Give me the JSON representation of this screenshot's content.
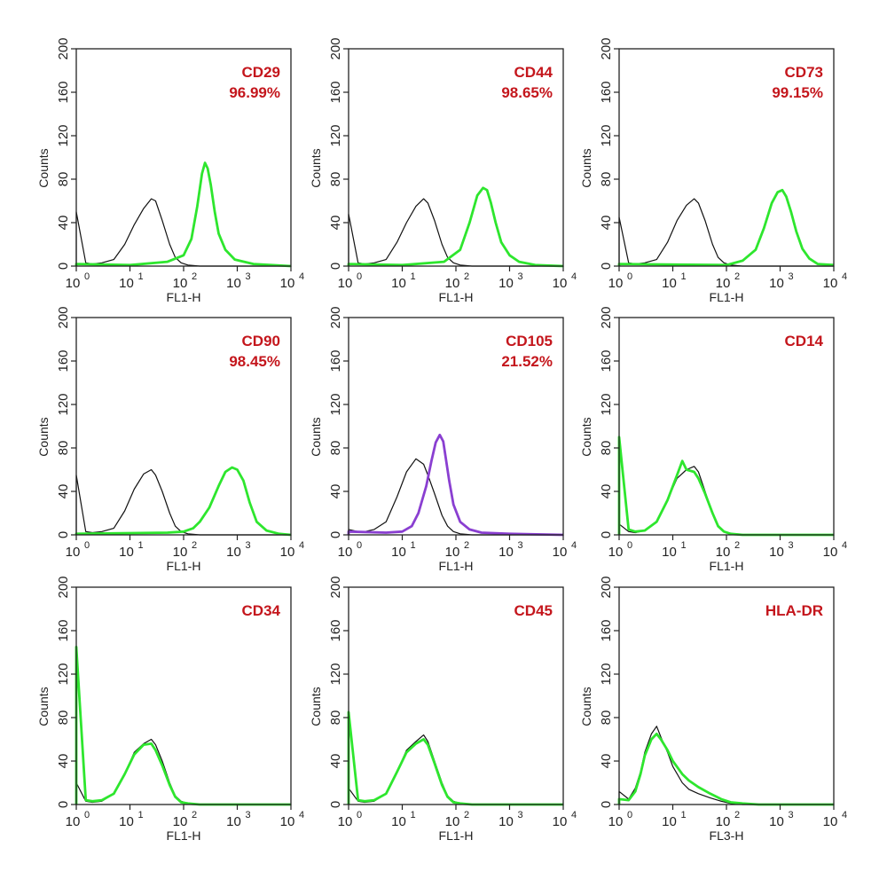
{
  "colors": {
    "isotype": "#111111",
    "stain_green": "#2ee62e",
    "stain_purple": "#8a3fd1",
    "label": "#c4161c"
  },
  "chart_data": [
    {
      "type": "line",
      "marker": "CD29",
      "percent": "96.99%",
      "xlabel": "FL1-H",
      "ylabel": "Counts",
      "xscale": "log",
      "xlim": [
        1,
        10000
      ],
      "ylim": [
        0,
        200
      ],
      "yticks": [
        "0",
        "40",
        "80",
        "120",
        "160",
        "200"
      ],
      "xticks": [
        "10",
        "10",
        "10",
        "10",
        "10"
      ],
      "xtick_exps": [
        "0",
        "1",
        "2",
        "3",
        "4"
      ],
      "series": [
        {
          "color": "#111111",
          "x": [
            1,
            1.5,
            2,
            3,
            5,
            8,
            12,
            18,
            25,
            30,
            40,
            55,
            70,
            90,
            120,
            200,
            400,
            1000,
            10000
          ],
          "y": [
            50,
            3,
            2,
            3,
            6,
            20,
            38,
            53,
            62,
            60,
            42,
            20,
            8,
            3,
            1,
            0,
            0,
            0,
            0
          ]
        },
        {
          "color": "#2ee62e",
          "x": [
            1,
            10,
            50,
            100,
            140,
            180,
            220,
            250,
            280,
            320,
            380,
            450,
            600,
            900,
            2000,
            10000
          ],
          "y": [
            2,
            1,
            4,
            10,
            25,
            55,
            85,
            95,
            90,
            75,
            50,
            30,
            15,
            6,
            2,
            0
          ]
        }
      ]
    },
    {
      "type": "line",
      "marker": "CD44",
      "percent": "98.65%",
      "xlabel": "FL1-H",
      "ylabel": "Counts",
      "xscale": "log",
      "xlim": [
        1,
        10000
      ],
      "ylim": [
        0,
        200
      ],
      "yticks": [
        "0",
        "40",
        "80",
        "120",
        "160",
        "200"
      ],
      "xticks": [
        "10",
        "10",
        "10",
        "10",
        "10"
      ],
      "xtick_exps": [
        "0",
        "1",
        "2",
        "3",
        "4"
      ],
      "series": [
        {
          "color": "#111111",
          "x": [
            1,
            1.5,
            2,
            3,
            5,
            8,
            12,
            18,
            25,
            30,
            40,
            55,
            70,
            90,
            120,
            200,
            400,
            1000,
            10000
          ],
          "y": [
            48,
            3,
            2,
            3,
            6,
            22,
            40,
            55,
            62,
            58,
            42,
            20,
            8,
            3,
            1,
            0,
            0,
            0,
            0
          ]
        },
        {
          "color": "#2ee62e",
          "x": [
            1,
            10,
            60,
            120,
            180,
            250,
            320,
            380,
            450,
            550,
            700,
            1000,
            1500,
            3000,
            10000
          ],
          "y": [
            2,
            1,
            4,
            15,
            40,
            65,
            72,
            70,
            58,
            40,
            22,
            10,
            4,
            1,
            0
          ]
        }
      ]
    },
    {
      "type": "line",
      "marker": "CD73",
      "percent": "99.15%",
      "xlabel": "FL1-H",
      "ylabel": "Counts",
      "xscale": "log",
      "xlim": [
        1,
        10000
      ],
      "ylim": [
        0,
        200
      ],
      "yticks": [
        "0",
        "40",
        "80",
        "120",
        "160",
        "200"
      ],
      "xticks": [
        "10",
        "10",
        "10",
        "10",
        "10"
      ],
      "xtick_exps": [
        "0",
        "1",
        "2",
        "3",
        "4"
      ],
      "series": [
        {
          "color": "#111111",
          "x": [
            1,
            1.5,
            2,
            3,
            5,
            8,
            12,
            18,
            25,
            30,
            40,
            55,
            70,
            90,
            120,
            200,
            400,
            1000,
            10000
          ],
          "y": [
            45,
            3,
            2,
            3,
            6,
            22,
            42,
            56,
            62,
            58,
            42,
            20,
            8,
            3,
            1,
            0,
            0,
            0,
            0
          ]
        },
        {
          "color": "#2ee62e",
          "x": [
            1,
            100,
            200,
            350,
            500,
            700,
            900,
            1100,
            1300,
            1600,
            2000,
            2600,
            3500,
            5000,
            10000
          ],
          "y": [
            2,
            1,
            5,
            15,
            35,
            58,
            68,
            70,
            64,
            50,
            32,
            16,
            7,
            2,
            1
          ]
        }
      ]
    },
    {
      "type": "line",
      "marker": "CD90",
      "percent": "98.45%",
      "xlabel": "FL1-H",
      "ylabel": "Counts",
      "xscale": "log",
      "xlim": [
        1,
        10000
      ],
      "ylim": [
        0,
        200
      ],
      "yticks": [
        "0",
        "40",
        "80",
        "120",
        "160",
        "200"
      ],
      "xticks": [
        "10",
        "10",
        "10",
        "10",
        "10"
      ],
      "xtick_exps": [
        "0",
        "1",
        "2",
        "3",
        "4"
      ],
      "series": [
        {
          "color": "#111111",
          "x": [
            1,
            1.5,
            2,
            3,
            5,
            8,
            12,
            18,
            25,
            30,
            40,
            55,
            70,
            90,
            120,
            200,
            400,
            1000,
            10000
          ],
          "y": [
            55,
            3,
            2,
            3,
            6,
            22,
            42,
            56,
            60,
            55,
            40,
            20,
            8,
            3,
            1,
            0,
            0,
            0,
            0
          ]
        },
        {
          "color": "#2ee62e",
          "x": [
            1,
            50,
            100,
            150,
            200,
            300,
            450,
            600,
            800,
            1000,
            1300,
            1700,
            2300,
            3500,
            6000,
            10000
          ],
          "y": [
            1,
            2,
            3,
            6,
            12,
            25,
            45,
            58,
            62,
            60,
            50,
            30,
            12,
            4,
            1,
            0
          ]
        }
      ]
    },
    {
      "type": "line",
      "marker": "CD105",
      "percent": "21.52%",
      "xlabel": "FL1-H",
      "ylabel": "Counts",
      "xscale": "log",
      "xlim": [
        1,
        10000
      ],
      "ylim": [
        0,
        200
      ],
      "yticks": [
        "0",
        "40",
        "80",
        "120",
        "160",
        "200"
      ],
      "xticks": [
        "10",
        "10",
        "10",
        "10",
        "10"
      ],
      "xtick_exps": [
        "0",
        "1",
        "2",
        "3",
        "4"
      ],
      "series": [
        {
          "color": "#111111",
          "x": [
            1,
            1.5,
            2,
            3,
            5,
            8,
            12,
            18,
            25,
            30,
            40,
            55,
            70,
            90,
            120,
            200,
            400,
            1000,
            10000
          ],
          "y": [
            5,
            3,
            3,
            5,
            12,
            35,
            58,
            70,
            65,
            55,
            38,
            18,
            8,
            3,
            1,
            0,
            0,
            0,
            0
          ]
        },
        {
          "color": "#8a3fd1",
          "x": [
            1,
            5,
            10,
            15,
            20,
            28,
            35,
            42,
            50,
            58,
            65,
            75,
            90,
            120,
            180,
            300,
            1000,
            10000
          ],
          "y": [
            3,
            2,
            3,
            8,
            20,
            45,
            68,
            85,
            92,
            86,
            70,
            50,
            28,
            12,
            5,
            2,
            1,
            0
          ]
        }
      ]
    },
    {
      "type": "line",
      "marker": "CD14",
      "percent": "",
      "xlabel": "FL1-H",
      "ylabel": "Counts",
      "xscale": "log",
      "xlim": [
        1,
        10000
      ],
      "ylim": [
        0,
        200
      ],
      "yticks": [
        "0",
        "40",
        "80",
        "120",
        "160",
        "200"
      ],
      "xticks": [
        "10",
        "10",
        "10",
        "10",
        "10"
      ],
      "xtick_exps": [
        "0",
        "1",
        "2",
        "3",
        "4"
      ],
      "series": [
        {
          "color": "#111111",
          "x": [
            1,
            1.5,
            2,
            3,
            5,
            8,
            12,
            18,
            25,
            30,
            40,
            55,
            70,
            90,
            120,
            200,
            400,
            1000,
            10000
          ],
          "y": [
            10,
            3,
            2,
            4,
            12,
            32,
            52,
            60,
            63,
            58,
            40,
            20,
            8,
            3,
            1,
            0,
            0,
            0,
            0
          ]
        },
        {
          "color": "#2ee62e",
          "x": [
            1,
            1.5,
            2,
            3,
            5,
            8,
            12,
            15,
            18,
            25,
            30,
            40,
            55,
            70,
            90,
            120,
            200,
            400,
            1000,
            10000
          ],
          "y": [
            90,
            5,
            3,
            4,
            12,
            32,
            55,
            68,
            60,
            58,
            52,
            38,
            20,
            8,
            3,
            1,
            0,
            0,
            0,
            0
          ]
        }
      ]
    },
    {
      "type": "line",
      "marker": "CD34",
      "percent": "",
      "xlabel": "FL1-H",
      "ylabel": "Counts",
      "xscale": "log",
      "xlim": [
        1,
        10000
      ],
      "ylim": [
        0,
        200
      ],
      "yticks": [
        "0",
        "40",
        "80",
        "120",
        "160",
        "200"
      ],
      "xticks": [
        "10",
        "10",
        "10",
        "10",
        "10"
      ],
      "xtick_exps": [
        "0",
        "1",
        "2",
        "3",
        "4"
      ],
      "series": [
        {
          "color": "#111111",
          "x": [
            1,
            1.5,
            2,
            3,
            5,
            8,
            12,
            18,
            25,
            30,
            40,
            55,
            70,
            90,
            120,
            200,
            400,
            1000,
            10000
          ],
          "y": [
            20,
            3,
            2,
            3,
            10,
            28,
            48,
            56,
            60,
            55,
            40,
            20,
            8,
            3,
            1,
            0,
            0,
            0,
            0
          ]
        },
        {
          "color": "#2ee62e",
          "x": [
            1,
            1.5,
            2,
            3,
            5,
            8,
            12,
            18,
            25,
            30,
            40,
            55,
            70,
            90,
            120,
            200,
            400,
            1000,
            10000
          ],
          "y": [
            145,
            4,
            3,
            4,
            10,
            28,
            46,
            55,
            56,
            50,
            36,
            18,
            7,
            2,
            1,
            0,
            0,
            0,
            0
          ]
        }
      ]
    },
    {
      "type": "line",
      "marker": "CD45",
      "percent": "",
      "xlabel": "FL1-H",
      "ylabel": "Counts",
      "xscale": "log",
      "xlim": [
        1,
        10000
      ],
      "ylim": [
        0,
        200
      ],
      "yticks": [
        "0",
        "40",
        "80",
        "120",
        "160",
        "200"
      ],
      "xticks": [
        "10",
        "10",
        "10",
        "10",
        "10"
      ],
      "xtick_exps": [
        "0",
        "1",
        "2",
        "3",
        "4"
      ],
      "series": [
        {
          "color": "#111111",
          "x": [
            1,
            1.5,
            2,
            3,
            5,
            8,
            12,
            18,
            25,
            30,
            40,
            55,
            70,
            90,
            120,
            200,
            400,
            1000,
            10000
          ],
          "y": [
            15,
            3,
            2,
            3,
            10,
            30,
            50,
            58,
            64,
            58,
            40,
            20,
            8,
            3,
            1,
            0,
            0,
            0,
            0
          ]
        },
        {
          "color": "#2ee62e",
          "x": [
            1,
            1.5,
            2,
            3,
            5,
            8,
            12,
            18,
            25,
            30,
            40,
            55,
            70,
            90,
            120,
            200,
            400,
            1000,
            10000
          ],
          "y": [
            85,
            4,
            3,
            4,
            10,
            30,
            48,
            56,
            60,
            55,
            38,
            18,
            7,
            2,
            1,
            0,
            0,
            0,
            0
          ]
        }
      ]
    },
    {
      "type": "line",
      "marker": "HLA-DR",
      "percent": "",
      "xlabel": "FL3-H",
      "ylabel": "Counts",
      "xscale": "log",
      "xlim": [
        1,
        10000
      ],
      "ylim": [
        0,
        200
      ],
      "yticks": [
        "0",
        "40",
        "80",
        "120",
        "160",
        "200"
      ],
      "xticks": [
        "10",
        "10",
        "10",
        "10",
        "10"
      ],
      "xtick_exps": [
        "0",
        "1",
        "2",
        "3",
        "4"
      ],
      "series": [
        {
          "color": "#111111",
          "x": [
            1,
            1.5,
            2,
            2.5,
            3,
            4,
            5,
            6,
            8,
            10,
            15,
            20,
            30,
            50,
            80,
            120,
            200,
            400,
            1000,
            10000
          ],
          "y": [
            12,
            5,
            15,
            30,
            48,
            65,
            72,
            62,
            48,
            35,
            20,
            14,
            10,
            6,
            3,
            1,
            0,
            0,
            0,
            0
          ]
        },
        {
          "color": "#2ee62e",
          "x": [
            1,
            1.5,
            2,
            2.5,
            3,
            4,
            5,
            6,
            8,
            10,
            15,
            20,
            30,
            50,
            80,
            120,
            200,
            400,
            1000,
            10000
          ],
          "y": [
            5,
            4,
            12,
            28,
            45,
            60,
            65,
            60,
            50,
            40,
            28,
            22,
            16,
            10,
            5,
            2,
            1,
            0,
            0,
            0
          ]
        }
      ]
    }
  ]
}
